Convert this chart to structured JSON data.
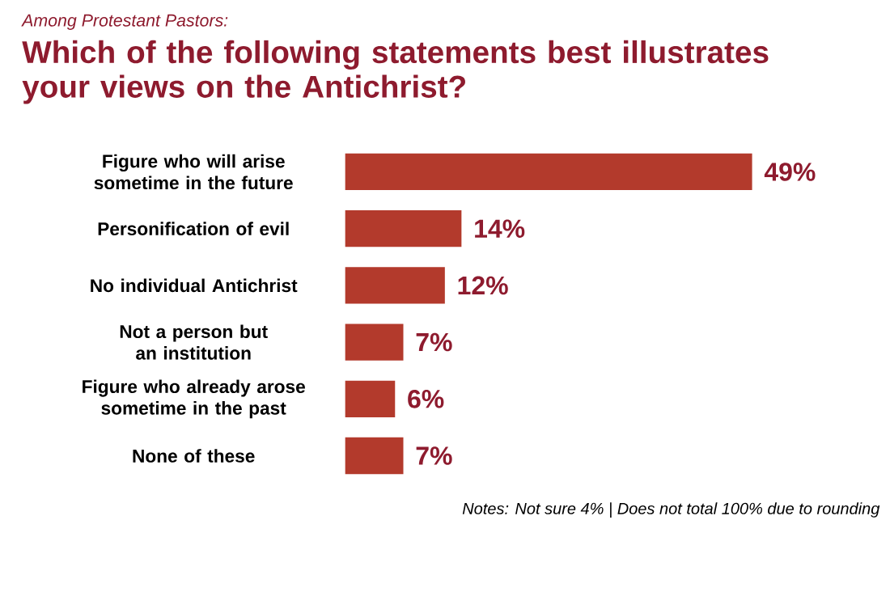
{
  "chart_data": {
    "type": "bar",
    "orientation": "horizontal",
    "subtitle": "Among Protestant Pastors:",
    "title": "Which of the following statements best illustrates your views on the Antichrist?",
    "categories": [
      "Figure who will arise sometime in the future",
      "Personification of evil",
      "No individual Antichrist",
      "Not a person but an institution",
      "Figure who already arose sometime in the past",
      "None of these"
    ],
    "values": [
      49,
      14,
      12,
      7,
      6,
      7
    ],
    "value_labels": [
      "49%",
      "14%",
      "12%",
      "7%",
      "6%",
      "7%"
    ],
    "color": "#b33a2c",
    "annotations": [
      "Notes: Not sure 4% | Does not total 100% due to rounding"
    ]
  }
}
